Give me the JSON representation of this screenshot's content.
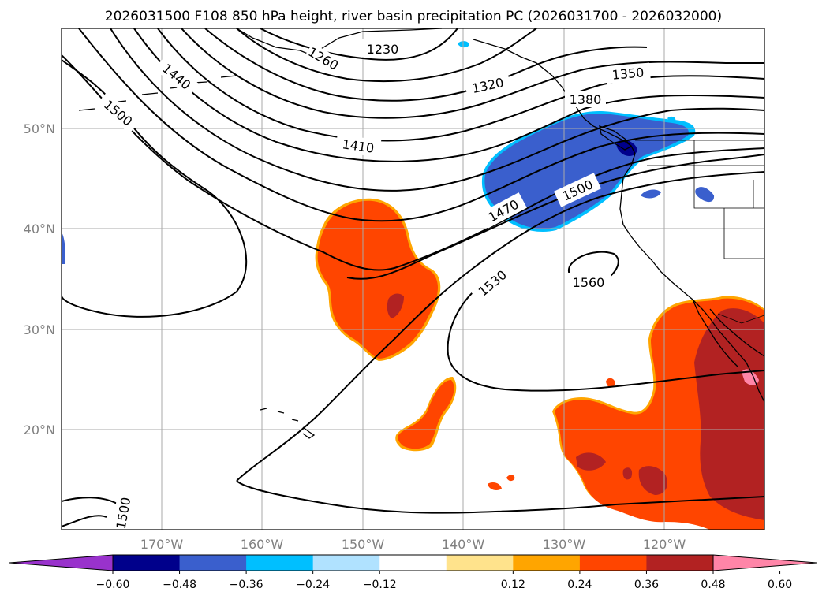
{
  "title": "2026031500 F108 850 hPa height, river basin precipitation PC (2026031700 - 2026032000)",
  "map": {
    "lat_labels": [
      "50°N",
      "40°N",
      "30°N",
      "20°N"
    ],
    "lon_labels": [
      "170°W",
      "160°W",
      "150°W",
      "140°W",
      "130°W",
      "120°W"
    ],
    "contour_labels": [
      "1230",
      "1320",
      "1350",
      "1380",
      "1410",
      "1440",
      "1470",
      "1500",
      "1530",
      "1560",
      "1500",
      "1500",
      "1260"
    ]
  },
  "colorbar": {
    "ticks": [
      "−0.60",
      "−0.48",
      "−0.36",
      "−0.24",
      "−0.12",
      "0.12",
      "0.24",
      "0.36",
      "0.48",
      "0.60"
    ],
    "colors": [
      "#9932cc",
      "#00008b",
      "#3a5fcd",
      "#00bfff",
      "#b0e2ff",
      "#ffffff",
      "#ffe38c",
      "#ffa500",
      "#ff4500",
      "#b22222",
      "#ff85a8"
    ]
  }
}
